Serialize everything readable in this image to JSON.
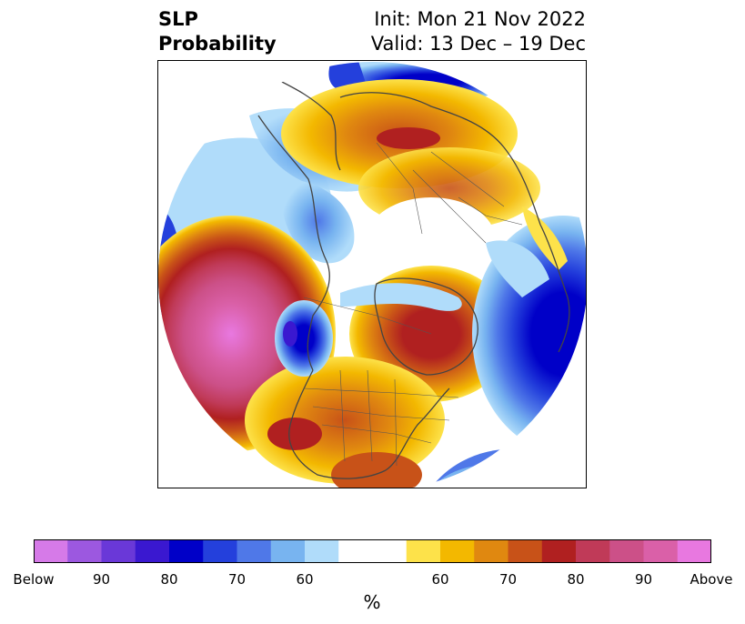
{
  "title": {
    "left_line1": "SLP",
    "left_line2": "Probability",
    "right_line1": "Init: Mon 21 Nov 2022",
    "right_line2": "Valid: 13 Dec – 19 Dec"
  },
  "colorbar": {
    "unit_label": "%",
    "ticks": [
      "Below",
      "90",
      "80",
      "70",
      "60",
      "60",
      "70",
      "80",
      "90",
      "Above"
    ],
    "colors": [
      "#d67ae8",
      "#9c58e0",
      "#6a38d8",
      "#3a18d0",
      "#0000c8",
      "#2440dc",
      "#4f78e8",
      "#78b4f0",
      "#b0dcfa",
      "#ffffff",
      "#ffffff",
      "#fde24a",
      "#f3b800",
      "#e08810",
      "#c85218",
      "#b02020",
      "#c03a58",
      "#cc5088",
      "#da60a8",
      "#e878e0"
    ]
  },
  "map": {
    "projection": "north-polar-stereographic",
    "variable": "sea level pressure tercile probability"
  }
}
